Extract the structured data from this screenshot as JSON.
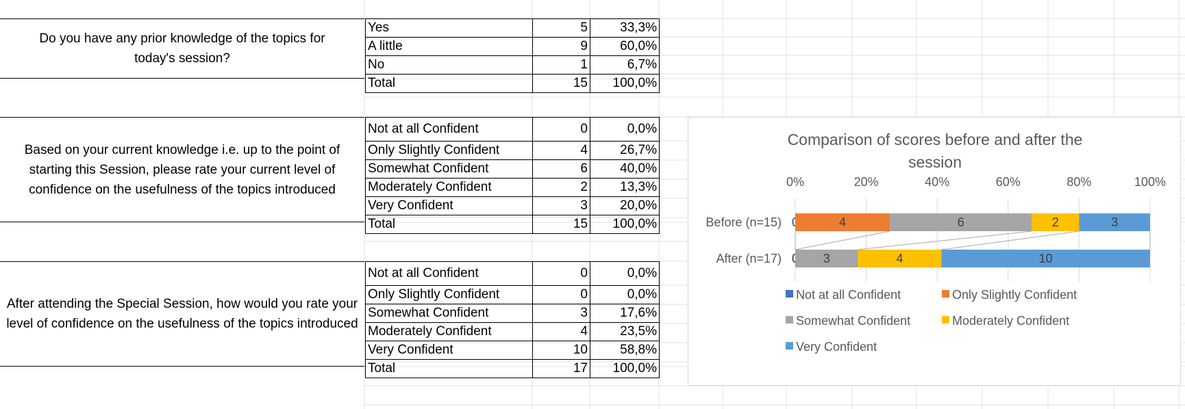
{
  "questions": [
    {
      "text": "Do you have any prior knowledge of the topics for today's session?",
      "rows": [
        {
          "label": "Yes",
          "count": "5",
          "percent": "33,3%"
        },
        {
          "label": "A little",
          "count": "9",
          "percent": "60,0%"
        },
        {
          "label": "No",
          "count": "1",
          "percent": "6,7%"
        },
        {
          "label": "Total",
          "count": "15",
          "percent": "100,0%"
        }
      ]
    },
    {
      "text": "Based on your current knowledge i.e. up to the point of starting this Session, please rate your current level of confidence on the usefulness of the topics introduced",
      "rows": [
        {
          "label": "Not at all Confident",
          "count": "0",
          "percent": "0,0%"
        },
        {
          "label": "Only Slightly Confident",
          "count": "4",
          "percent": "26,7%"
        },
        {
          "label": "Somewhat Confident",
          "count": "6",
          "percent": "40,0%"
        },
        {
          "label": "Moderately Confident",
          "count": "2",
          "percent": "13,3%"
        },
        {
          "label": "Very Confident",
          "count": "3",
          "percent": "20,0%"
        },
        {
          "label": "Total",
          "count": "15",
          "percent": "100,0%"
        }
      ]
    },
    {
      "text": "After attending the Special Session, how would you rate your level of confidence on the usefulness of the topics introduced",
      "rows": [
        {
          "label": "Not at all Confident",
          "count": "0",
          "percent": "0,0%"
        },
        {
          "label": "Only Slightly Confident",
          "count": "0",
          "percent": "0,0%"
        },
        {
          "label": "Somewhat Confident",
          "count": "3",
          "percent": "17,6%"
        },
        {
          "label": "Moderately Confident",
          "count": "4",
          "percent": "23,5%"
        },
        {
          "label": "Very Confident",
          "count": "10",
          "percent": "58,8%"
        },
        {
          "label": "Total",
          "count": "17",
          "percent": "100,0%"
        }
      ]
    }
  ],
  "chart_data": {
    "type": "bar",
    "orientation": "horizontal",
    "stacking": "percent",
    "title_lines": [
      "Comparison of scores before and after the",
      "session"
    ],
    "categories": [
      "Before (n=15)",
      "After (n=17)"
    ],
    "x_ticks": [
      "0%",
      "20%",
      "40%",
      "60%",
      "80%",
      "100%"
    ],
    "xlim": [
      0,
      100
    ],
    "grid": true,
    "legend_position": "bottom",
    "series": [
      {
        "name": "Not at all Confident",
        "values": [
          0,
          0
        ],
        "color": "#4472C4"
      },
      {
        "name": "Only Slightly Confident",
        "values": [
          4,
          0
        ],
        "color": "#ED7D31"
      },
      {
        "name": "Somewhat Confident",
        "values": [
          6,
          3
        ],
        "color": "#A5A5A5"
      },
      {
        "name": "Moderately Confident",
        "values": [
          2,
          4
        ],
        "color": "#FFC000"
      },
      {
        "name": "Very Confident",
        "values": [
          3,
          10
        ],
        "color": "#5B9BD5"
      }
    ]
  }
}
